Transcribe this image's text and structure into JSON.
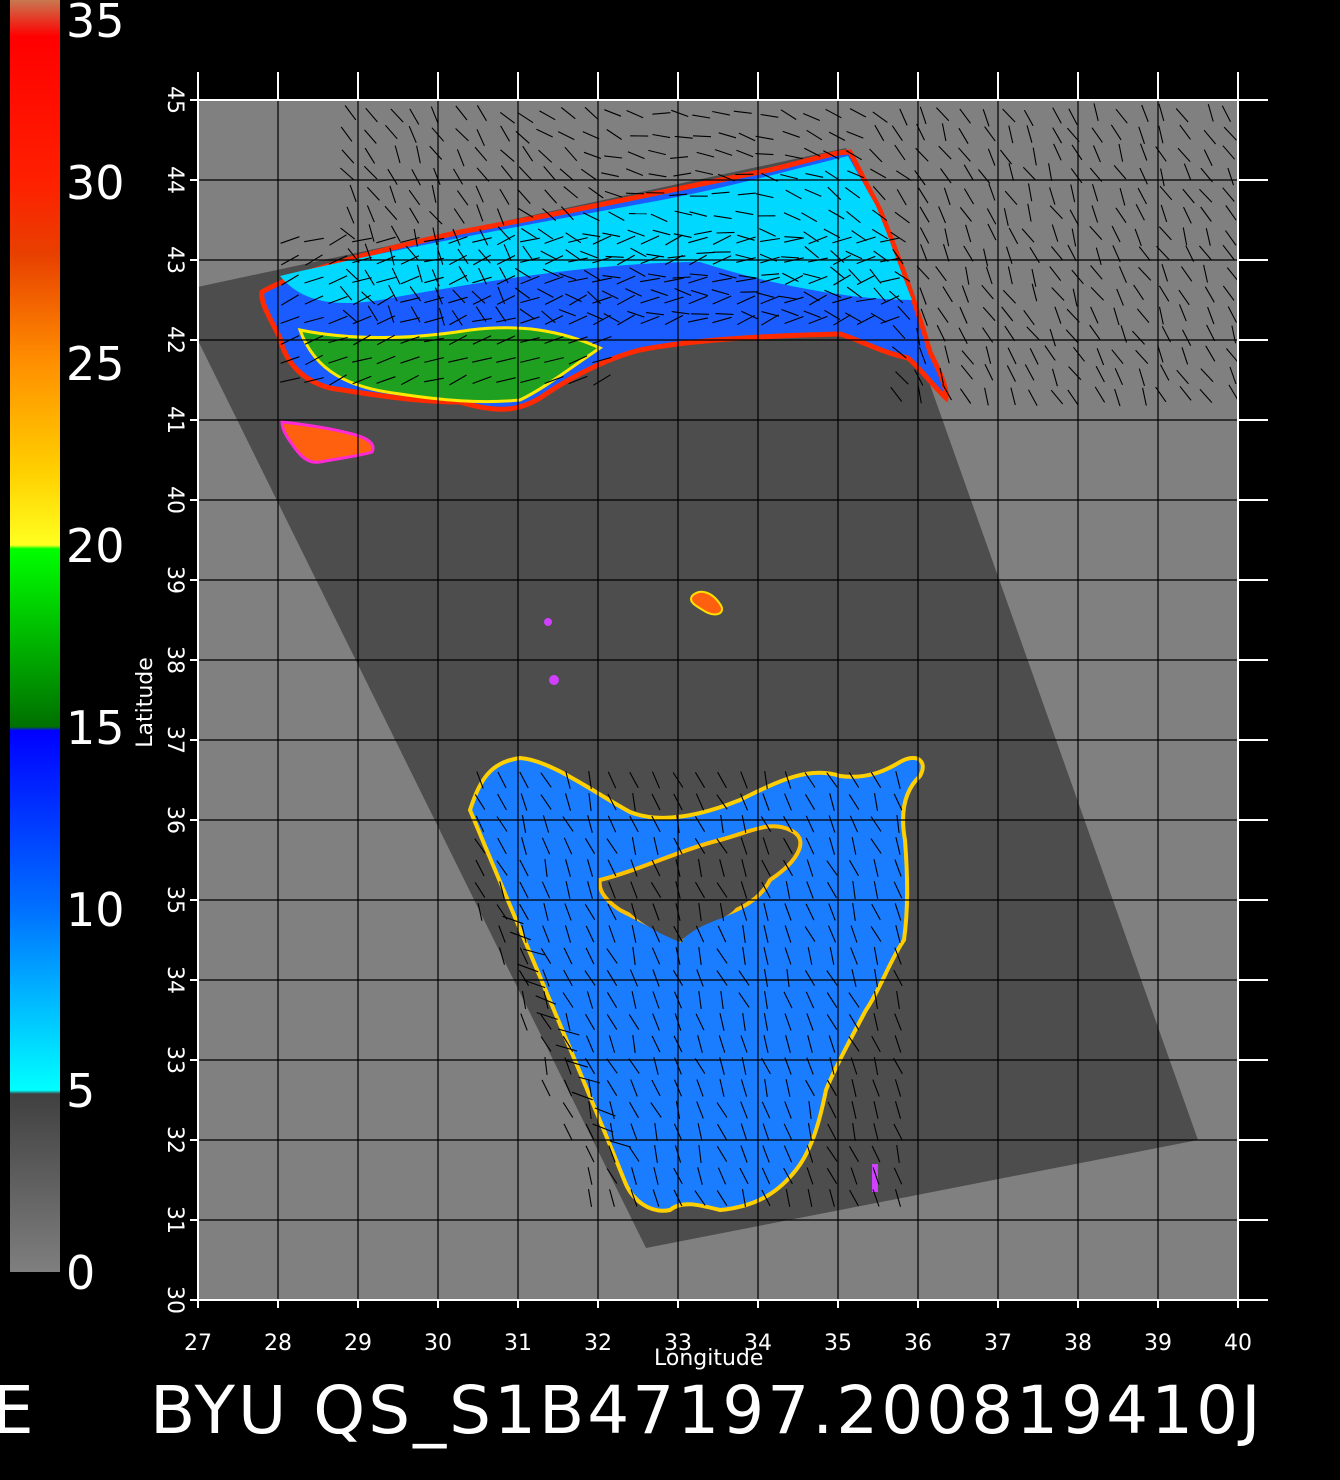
{
  "caption": "BYU QS_S1B47197.200819410J",
  "caption_stub": "E",
  "colorbar": {
    "labels": [
      "35",
      "30",
      "25",
      "20",
      "15",
      "10",
      "5",
      "0"
    ],
    "values": [
      35,
      30,
      25,
      20,
      15,
      10,
      5,
      0
    ],
    "stops": [
      {
        "v": 35,
        "color": "#c87850"
      },
      {
        "v": 34,
        "color": "#ff0000"
      },
      {
        "v": 30,
        "color": "#ff2000"
      },
      {
        "v": 28,
        "color": "#e84000"
      },
      {
        "v": 25,
        "color": "#ff9000"
      },
      {
        "v": 22,
        "color": "#ffd000"
      },
      {
        "v": 20,
        "color": "#ffff20"
      },
      {
        "v": 19.9,
        "color": "#00ff00"
      },
      {
        "v": 15,
        "color": "#007000"
      },
      {
        "v": 14.9,
        "color": "#0000ff"
      },
      {
        "v": 10,
        "color": "#0070ff"
      },
      {
        "v": 5,
        "color": "#00ffff"
      },
      {
        "v": 4.9,
        "color": "#404040"
      },
      {
        "v": 0,
        "color": "#7f7f7f"
      }
    ]
  },
  "axes": {
    "xlabel": "Longitude",
    "ylabel": "Latitude",
    "xticks": [
      "27",
      "28",
      "29",
      "30",
      "31",
      "32",
      "33",
      "34",
      "35",
      "36",
      "37",
      "38",
      "39",
      "40"
    ],
    "yticks": [
      "30",
      "31",
      "32",
      "33",
      "34",
      "35",
      "36",
      "37",
      "38",
      "39",
      "40",
      "41",
      "42",
      "43",
      "44",
      "45"
    ],
    "xlim": [
      27,
      40
    ],
    "ylim": [
      30,
      45
    ],
    "grid": true
  },
  "colors": {
    "background": "#000000",
    "land": "#808080",
    "swath": "#4d4d4d",
    "grid": "#000000",
    "frame": "#ffffff"
  },
  "swath_corners_lonlat": [
    [
      26.7,
      42.6
    ],
    [
      35.1,
      44.4
    ],
    [
      39.5,
      32.0
    ],
    [
      32.6,
      30.65
    ]
  ]
}
